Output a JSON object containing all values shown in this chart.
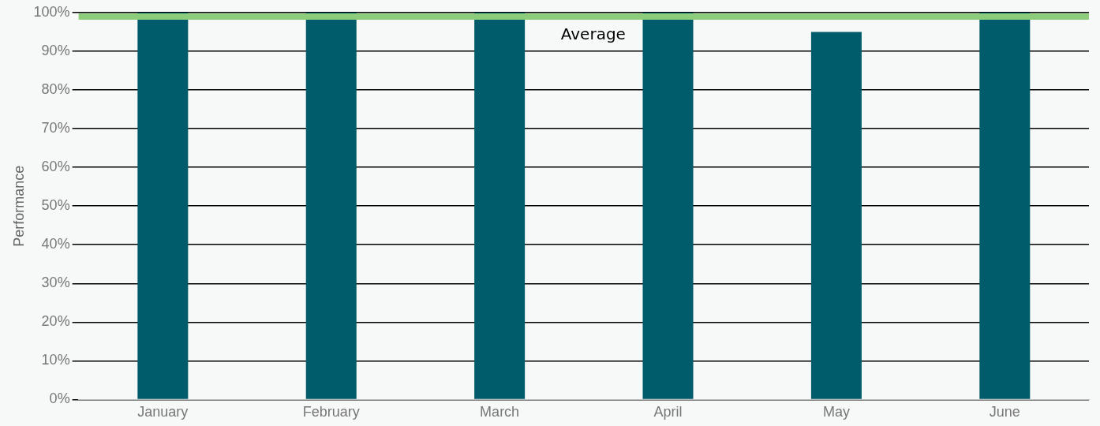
{
  "chart_data": {
    "type": "bar",
    "ylabel": "Performance",
    "categories": [
      "January",
      "February",
      "March",
      "April",
      "May",
      "June"
    ],
    "series": [
      {
        "color": "#005c6a",
        "values": [
          100,
          100,
          100,
          100,
          95,
          100
        ]
      }
    ],
    "ylim": [
      0,
      100
    ],
    "yticks": [
      {
        "value": 0,
        "label": "0%"
      },
      {
        "value": 10,
        "label": "10%"
      },
      {
        "value": 20,
        "label": "20%"
      },
      {
        "value": 30,
        "label": "30%"
      },
      {
        "value": 40,
        "label": "40%"
      },
      {
        "value": 50,
        "label": "50%"
      },
      {
        "value": 60,
        "label": "60%"
      },
      {
        "value": 70,
        "label": "70%"
      },
      {
        "value": 80,
        "label": "80%"
      },
      {
        "value": 90,
        "label": "90%"
      },
      {
        "value": 100,
        "label": "100%"
      }
    ],
    "grid": "y",
    "legend": false,
    "ref_lines": [
      {
        "axis": "y",
        "value": 99,
        "label": "Average",
        "color": "#8ccc7a"
      }
    ]
  }
}
